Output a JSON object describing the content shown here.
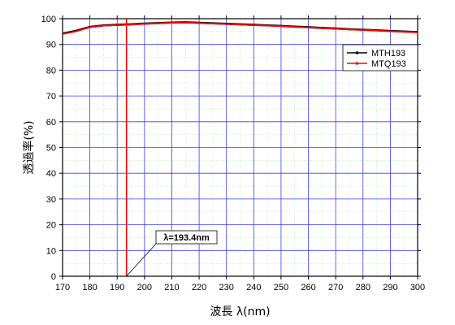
{
  "chart_data": {
    "type": "line",
    "xlabel": "波長 λ(nm)",
    "ylabel": "透過率(%)",
    "xlim": [
      170,
      300
    ],
    "ylim": [
      0,
      100
    ],
    "xticks": [
      170,
      180,
      190,
      200,
      210,
      220,
      230,
      240,
      250,
      260,
      270,
      280,
      290,
      300
    ],
    "yticks": [
      0,
      10,
      20,
      30,
      40,
      50,
      60,
      70,
      80,
      90,
      100
    ],
    "grid": true,
    "legend_position": "top-right",
    "series": [
      {
        "name": "MTH193",
        "color": "#000000",
        "x": [
          170,
          175,
          180,
          185,
          190,
          195,
          200,
          205,
          210,
          215,
          220,
          225,
          230,
          235,
          240,
          245,
          250,
          255,
          260,
          265,
          270,
          275,
          280,
          285,
          290,
          295,
          300
        ],
        "y": [
          94.2,
          95.3,
          96.8,
          97.4,
          97.6,
          97.8,
          98.1,
          98.3,
          98.5,
          98.6,
          98.4,
          98.2,
          98.0,
          97.8,
          97.6,
          97.4,
          97.2,
          96.9,
          96.7,
          96.4,
          96.2,
          95.9,
          95.7,
          95.5,
          95.2,
          95.0,
          94.8
        ]
      },
      {
        "name": "MTQ193",
        "color": "#ff0000",
        "x": [
          170,
          175,
          180,
          185,
          190,
          195,
          200,
          205,
          210,
          215,
          220,
          225,
          230,
          235,
          240,
          245,
          250,
          255,
          260,
          265,
          270,
          275,
          280,
          285,
          290,
          295,
          300
        ],
        "y": [
          94.0,
          95.1,
          96.7,
          97.3,
          97.5,
          97.7,
          98.0,
          98.2,
          98.4,
          98.5,
          98.3,
          98.1,
          97.9,
          97.7,
          97.5,
          97.3,
          97.1,
          96.8,
          96.6,
          96.3,
          96.1,
          95.8,
          95.6,
          95.4,
          95.1,
          94.9,
          94.7
        ]
      }
    ],
    "vline": {
      "x": 193.4,
      "color": "#ff0000"
    },
    "annotation": {
      "text": "λ=193.4nm",
      "x": 193.4,
      "y": 0
    }
  }
}
